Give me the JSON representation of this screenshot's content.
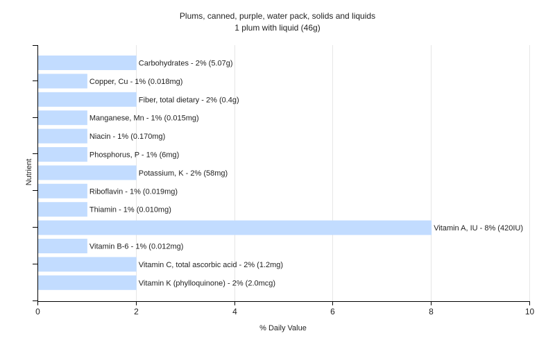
{
  "chart_data": {
    "type": "bar",
    "orientation": "horizontal",
    "title": "Plums, canned, purple, water pack, solids and liquids",
    "subtitle": "1 plum with liquid (46g)",
    "xlabel": "% Daily Value",
    "ylabel": "Nutrient",
    "xlim": [
      0,
      10
    ],
    "xticks": [
      "0",
      "2",
      "4",
      "6",
      "8",
      "10"
    ],
    "grid": true,
    "bar_color": "#c2dcff",
    "categories": [
      "Carbohydrates",
      "Copper, Cu",
      "Fiber, total dietary",
      "Manganese, Mn",
      "Niacin",
      "Phosphorus, P",
      "Potassium, K",
      "Riboflavin",
      "Thiamin",
      "Vitamin A, IU",
      "Vitamin B-6",
      "Vitamin C, total ascorbic acid",
      "Vitamin K (phylloquinone)"
    ],
    "values": [
      2,
      1,
      2,
      1,
      1,
      1,
      2,
      1,
      1,
      8,
      1,
      2,
      2
    ],
    "labels": [
      "Carbohydrates - 2% (5.07g)",
      "Copper, Cu - 1% (0.018mg)",
      "Fiber, total dietary - 2% (0.4g)",
      "Manganese, Mn - 1% (0.015mg)",
      "Niacin - 1% (0.170mg)",
      "Phosphorus, P - 1% (6mg)",
      "Potassium, K - 2% (58mg)",
      "Riboflavin - 1% (0.019mg)",
      "Thiamin - 1% (0.010mg)",
      "Vitamin A, IU - 8% (420IU)",
      "Vitamin B-6 - 1% (0.012mg)",
      "Vitamin C, total ascorbic acid - 2% (1.2mg)",
      "Vitamin K (phylloquinone) - 2% (2.0mcg)"
    ]
  }
}
